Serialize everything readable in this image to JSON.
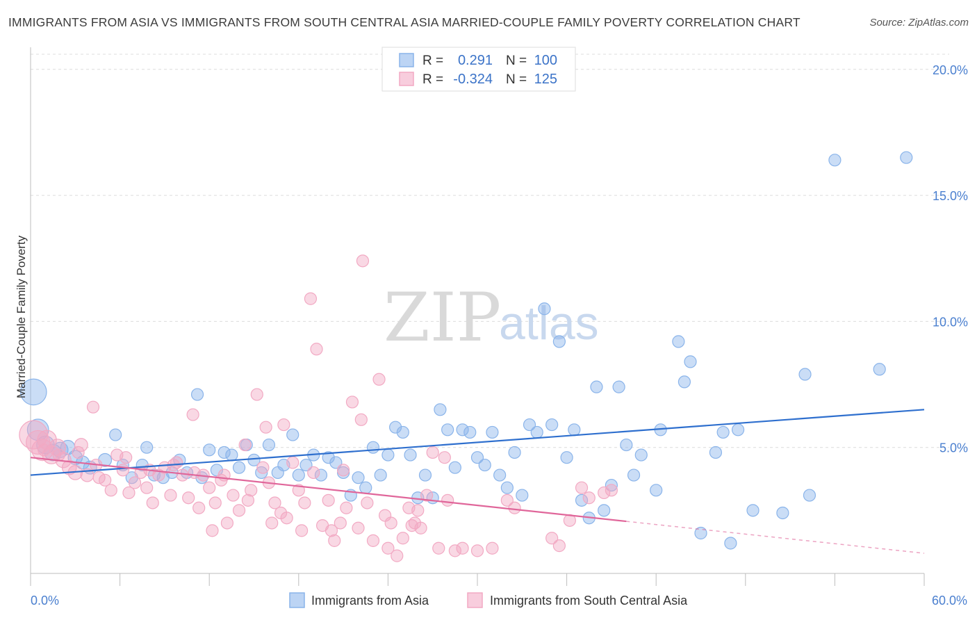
{
  "chart_data": {
    "type": "scatter",
    "title": "IMMIGRANTS FROM ASIA VS IMMIGRANTS FROM SOUTH CENTRAL ASIA MARRIED-COUPLE FAMILY POVERTY CORRELATION CHART",
    "source": "Source: ZipAtlas.com",
    "ylabel": "Married-Couple Family Poverty",
    "xlim": [
      0,
      60
    ],
    "ylim": [
      0,
      20.6
    ],
    "x_tick_labels": [
      "0.0%",
      "60.0%"
    ],
    "y_ticks": [
      5,
      10,
      15,
      20
    ],
    "y_tick_labels": [
      "5.0%",
      "10.0%",
      "15.0%",
      "20.0%"
    ],
    "watermark": {
      "zip": "ZIP",
      "atlas": "atlas"
    },
    "legend_stats": [
      {
        "r_label": "R =",
        "r_value": "0.291",
        "n_label": "N =",
        "n_value": "100"
      },
      {
        "r_label": "R =",
        "r_value": "-0.324",
        "n_label": "N =",
        "n_value": "125"
      }
    ],
    "series": [
      {
        "name": "Immigrants from Asia",
        "color": "#8ab4ea",
        "line_color": "#2e6fce",
        "trend": {
          "x0": 0,
          "y0": 3.9,
          "x1": 60,
          "y1": 6.5,
          "solid_until": 60
        },
        "points": [
          [
            0.2,
            7.2,
            2.2
          ],
          [
            0.5,
            5.7,
            1.8
          ],
          [
            1.0,
            5.1,
            1.5
          ],
          [
            1.5,
            4.8,
            1.4
          ],
          [
            2.0,
            4.9,
            1.3
          ],
          [
            2.5,
            5.0,
            1.2
          ],
          [
            3.0,
            4.6,
            1.2
          ],
          [
            3.5,
            4.4,
            1.1
          ],
          [
            4.0,
            4.2,
            1.1
          ],
          [
            5.0,
            4.5,
            1.1
          ],
          [
            5.7,
            5.5,
            1.0
          ],
          [
            6.2,
            4.3,
            1.0
          ],
          [
            6.8,
            3.8,
            1.0
          ],
          [
            7.5,
            4.3,
            1.0
          ],
          [
            7.8,
            5.0,
            1.0
          ],
          [
            8.3,
            3.9,
            1.0
          ],
          [
            8.9,
            3.8,
            1.0
          ],
          [
            9.5,
            4.0,
            1.0
          ],
          [
            10.0,
            4.5,
            1.0
          ],
          [
            10.5,
            4.0,
            1.0
          ],
          [
            11.2,
            7.1,
            1.0
          ],
          [
            11.5,
            3.8,
            1.0
          ],
          [
            12.0,
            4.9,
            1.0
          ],
          [
            12.5,
            4.1,
            1.0
          ],
          [
            13.0,
            4.8,
            1.0
          ],
          [
            13.5,
            4.7,
            1.0
          ],
          [
            14.0,
            4.2,
            1.0
          ],
          [
            14.5,
            5.1,
            1.0
          ],
          [
            15.0,
            4.5,
            1.0
          ],
          [
            15.5,
            4.0,
            1.0
          ],
          [
            16.0,
            5.1,
            1.0
          ],
          [
            16.6,
            4.0,
            1.0
          ],
          [
            17.0,
            4.3,
            1.0
          ],
          [
            17.6,
            5.5,
            1.0
          ],
          [
            18.0,
            3.9,
            1.0
          ],
          [
            18.5,
            4.3,
            1.0
          ],
          [
            19.0,
            4.7,
            1.0
          ],
          [
            19.5,
            3.9,
            1.0
          ],
          [
            20.0,
            4.6,
            1.0
          ],
          [
            20.5,
            4.4,
            1.0
          ],
          [
            21.0,
            4.0,
            1.0
          ],
          [
            21.5,
            3.1,
            1.0
          ],
          [
            22.0,
            3.8,
            1.0
          ],
          [
            22.5,
            3.4,
            1.0
          ],
          [
            23.0,
            5.0,
            1.0
          ],
          [
            23.5,
            3.9,
            1.0
          ],
          [
            24.0,
            4.7,
            1.0
          ],
          [
            24.5,
            5.8,
            1.0
          ],
          [
            25.0,
            5.6,
            1.0
          ],
          [
            25.5,
            4.7,
            1.0
          ],
          [
            26.0,
            3.0,
            1.0
          ],
          [
            26.5,
            3.9,
            1.0
          ],
          [
            27.0,
            3.0,
            1.0
          ],
          [
            27.5,
            6.5,
            1.0
          ],
          [
            28.0,
            5.7,
            1.0
          ],
          [
            28.5,
            4.2,
            1.0
          ],
          [
            29.0,
            5.7,
            1.0
          ],
          [
            29.5,
            5.6,
            1.0
          ],
          [
            30.0,
            4.6,
            1.0
          ],
          [
            30.5,
            4.3,
            1.0
          ],
          [
            31.0,
            5.6,
            1.0
          ],
          [
            31.5,
            3.9,
            1.0
          ],
          [
            32.0,
            3.4,
            1.0
          ],
          [
            32.5,
            4.8,
            1.0
          ],
          [
            33.0,
            3.1,
            1.0
          ],
          [
            33.5,
            5.9,
            1.0
          ],
          [
            34.0,
            5.6,
            1.0
          ],
          [
            34.5,
            10.5,
            1.0
          ],
          [
            35.0,
            5.9,
            1.0
          ],
          [
            35.5,
            9.2,
            1.0
          ],
          [
            36.0,
            4.6,
            1.0
          ],
          [
            36.5,
            5.7,
            1.0
          ],
          [
            37.0,
            2.9,
            1.0
          ],
          [
            37.5,
            2.2,
            1.0
          ],
          [
            38.0,
            7.4,
            1.0
          ],
          [
            38.5,
            2.5,
            1.0
          ],
          [
            39.0,
            3.5,
            1.0
          ],
          [
            39.5,
            7.4,
            1.0
          ],
          [
            40.0,
            5.1,
            1.0
          ],
          [
            40.5,
            3.9,
            1.0
          ],
          [
            41.0,
            4.7,
            1.0
          ],
          [
            42.0,
            3.3,
            1.0
          ],
          [
            42.3,
            5.7,
            1.0
          ],
          [
            43.5,
            9.2,
            1.0
          ],
          [
            43.9,
            7.6,
            1.0
          ],
          [
            44.3,
            8.4,
            1.0
          ],
          [
            45.0,
            1.6,
            1.0
          ],
          [
            46.0,
            4.8,
            1.0
          ],
          [
            46.5,
            5.6,
            1.0
          ],
          [
            47.0,
            1.2,
            1.0
          ],
          [
            47.5,
            5.7,
            1.0
          ],
          [
            48.5,
            2.5,
            1.0
          ],
          [
            50.5,
            2.4,
            1.0
          ],
          [
            52.0,
            7.9,
            1.0
          ],
          [
            52.3,
            3.1,
            1.0
          ],
          [
            54.0,
            16.4,
            1.0
          ],
          [
            57.0,
            8.1,
            1.0
          ],
          [
            58.8,
            16.5,
            1.0
          ]
        ]
      },
      {
        "name": "Immigrants from South Central Asia",
        "color": "#f2a9c3",
        "line_color": "#e0669a",
        "trend": {
          "x0": 0,
          "y0": 4.6,
          "x1": 60,
          "y1": 0.8,
          "solid_until": 40
        },
        "points": [
          [
            0.2,
            5.5,
            2.4
          ],
          [
            0.5,
            5.2,
            2.0
          ],
          [
            0.8,
            4.9,
            1.8
          ],
          [
            1.1,
            5.3,
            1.6
          ],
          [
            1.4,
            4.7,
            1.5
          ],
          [
            1.8,
            5.0,
            1.4
          ],
          [
            2.2,
            4.5,
            1.3
          ],
          [
            2.6,
            4.2,
            1.2
          ],
          [
            3.0,
            4.0,
            1.2
          ],
          [
            3.4,
            5.1,
            1.1
          ],
          [
            3.8,
            3.9,
            1.1
          ],
          [
            4.2,
            6.6,
            1.0
          ],
          [
            4.6,
            3.8,
            1.0
          ],
          [
            5.0,
            3.7,
            1.0
          ],
          [
            5.4,
            3.3,
            1.0
          ],
          [
            5.8,
            4.7,
            1.0
          ],
          [
            6.2,
            4.1,
            1.0
          ],
          [
            6.6,
            3.2,
            1.0
          ],
          [
            7.0,
            3.6,
            1.0
          ],
          [
            7.4,
            4.0,
            1.0
          ],
          [
            7.8,
            3.4,
            1.0
          ],
          [
            8.2,
            2.8,
            1.0
          ],
          [
            8.6,
            3.9,
            1.0
          ],
          [
            9.0,
            4.2,
            1.0
          ],
          [
            9.4,
            3.1,
            1.0
          ],
          [
            9.8,
            4.4,
            1.0
          ],
          [
            10.2,
            3.9,
            1.0
          ],
          [
            10.6,
            3.0,
            1.0
          ],
          [
            10.9,
            6.3,
            1.0
          ],
          [
            11.3,
            2.6,
            1.0
          ],
          [
            11.6,
            3.9,
            1.0
          ],
          [
            12.0,
            3.4,
            1.0
          ],
          [
            12.4,
            2.8,
            1.0
          ],
          [
            12.8,
            3.7,
            1.0
          ],
          [
            13.2,
            2.0,
            1.0
          ],
          [
            13.6,
            3.1,
            1.0
          ],
          [
            14.0,
            2.5,
            1.0
          ],
          [
            14.4,
            5.1,
            1.0
          ],
          [
            14.8,
            3.3,
            1.0
          ],
          [
            15.2,
            7.1,
            1.0
          ],
          [
            15.6,
            4.2,
            1.0
          ],
          [
            16.0,
            3.6,
            1.0
          ],
          [
            16.4,
            2.8,
            1.0
          ],
          [
            16.8,
            2.4,
            1.0
          ],
          [
            17.2,
            2.2,
            1.0
          ],
          [
            17.6,
            4.4,
            1.0
          ],
          [
            18.0,
            3.3,
            1.0
          ],
          [
            18.4,
            2.8,
            1.0
          ],
          [
            18.8,
            10.9,
            1.0
          ],
          [
            19.2,
            8.9,
            1.0
          ],
          [
            19.6,
            1.9,
            1.0
          ],
          [
            20.0,
            2.9,
            1.0
          ],
          [
            20.4,
            1.3,
            1.0
          ],
          [
            20.8,
            2.0,
            1.0
          ],
          [
            21.2,
            2.6,
            1.0
          ],
          [
            21.6,
            6.8,
            1.0
          ],
          [
            22.0,
            1.8,
            1.0
          ],
          [
            22.3,
            12.4,
            1.0
          ],
          [
            22.6,
            2.8,
            1.0
          ],
          [
            23.0,
            1.3,
            1.0
          ],
          [
            23.4,
            7.7,
            1.0
          ],
          [
            23.8,
            2.3,
            1.0
          ],
          [
            24.2,
            2.0,
            1.0
          ],
          [
            24.6,
            0.7,
            1.0
          ],
          [
            25.0,
            1.4,
            1.0
          ],
          [
            25.4,
            2.6,
            1.0
          ],
          [
            25.8,
            2.0,
            1.0
          ],
          [
            26.2,
            1.8,
            1.0
          ],
          [
            26.6,
            3.1,
            1.0
          ],
          [
            27.0,
            4.8,
            1.0
          ],
          [
            27.4,
            1.0,
            1.0
          ],
          [
            28.0,
            2.9,
            1.0
          ],
          [
            28.5,
            0.9,
            1.0
          ],
          [
            29.0,
            1.0,
            1.0
          ],
          [
            30.0,
            0.9,
            1.0
          ],
          [
            32.0,
            2.9,
            1.0
          ],
          [
            32.5,
            2.6,
            1.0
          ],
          [
            35.0,
            1.4,
            1.0
          ],
          [
            35.5,
            1.1,
            1.0
          ],
          [
            37.0,
            3.4,
            1.0
          ],
          [
            37.5,
            3.0,
            1.0
          ],
          [
            38.5,
            3.2,
            1.0
          ],
          [
            39.0,
            3.3,
            1.0
          ],
          [
            0.9,
            4.9,
            1.0
          ],
          [
            1.9,
            4.7,
            1.0
          ],
          [
            3.2,
            4.8,
            1.0
          ],
          [
            4.4,
            4.3,
            1.0
          ],
          [
            6.4,
            4.6,
            1.0
          ],
          [
            8.0,
            4.1,
            1.0
          ],
          [
            9.6,
            4.3,
            1.0
          ],
          [
            11.0,
            4.0,
            1.0
          ],
          [
            13.0,
            3.9,
            1.0
          ],
          [
            14.6,
            2.9,
            1.0
          ],
          [
            15.8,
            5.8,
            1.0
          ],
          [
            17.0,
            5.9,
            1.0
          ],
          [
            19.0,
            4.0,
            1.0
          ],
          [
            21.0,
            4.1,
            1.0
          ],
          [
            22.2,
            6.1,
            1.0
          ],
          [
            26.0,
            2.5,
            1.0
          ],
          [
            27.8,
            4.6,
            1.0
          ],
          [
            31.0,
            1.0,
            1.0
          ],
          [
            36.2,
            2.1,
            1.0
          ],
          [
            12.2,
            1.7,
            1.0
          ],
          [
            16.2,
            2.0,
            1.0
          ],
          [
            18.2,
            1.7,
            1.0
          ],
          [
            20.2,
            1.7,
            1.0
          ],
          [
            24.0,
            1.0,
            1.0
          ],
          [
            25.6,
            1.9,
            1.0
          ]
        ]
      }
    ]
  }
}
